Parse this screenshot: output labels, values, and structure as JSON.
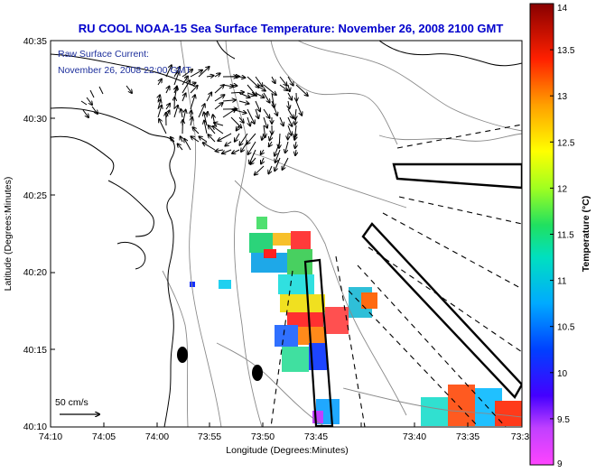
{
  "title": "RU COOL  NOAA-15  Sea Surface Temperature:  November 26, 2008 2100 GMT",
  "overlay": {
    "line1": "Raw Surface Current:",
    "line2": "November 26, 2008 22:00 GMT"
  },
  "scale_label": "50 cm/s",
  "y_axis": {
    "label": "Latitude (Degrees:Minutes)",
    "ticks": [
      "40:35",
      "40:30",
      "40:25",
      "40:20",
      "40:15",
      "40:10"
    ]
  },
  "x_axis": {
    "label": "Longitude (Degrees:Minutes)",
    "ticks": [
      "74:10",
      "74:05",
      "74:00",
      "73:55",
      "73:50",
      "73:45",
      "73:40",
      "73:35",
      "73:3"
    ]
  },
  "colorbar": {
    "label": "Temperature (°C)",
    "ticks": [
      "14",
      "13.5",
      "13",
      "12.5",
      "12",
      "11.5",
      "11",
      "10.5",
      "10",
      "9.5",
      "9"
    ],
    "min": 9,
    "max": 14
  },
  "colors": {
    "title_blue": "#0000cc",
    "text_blue": "#1d2f9c"
  }
}
